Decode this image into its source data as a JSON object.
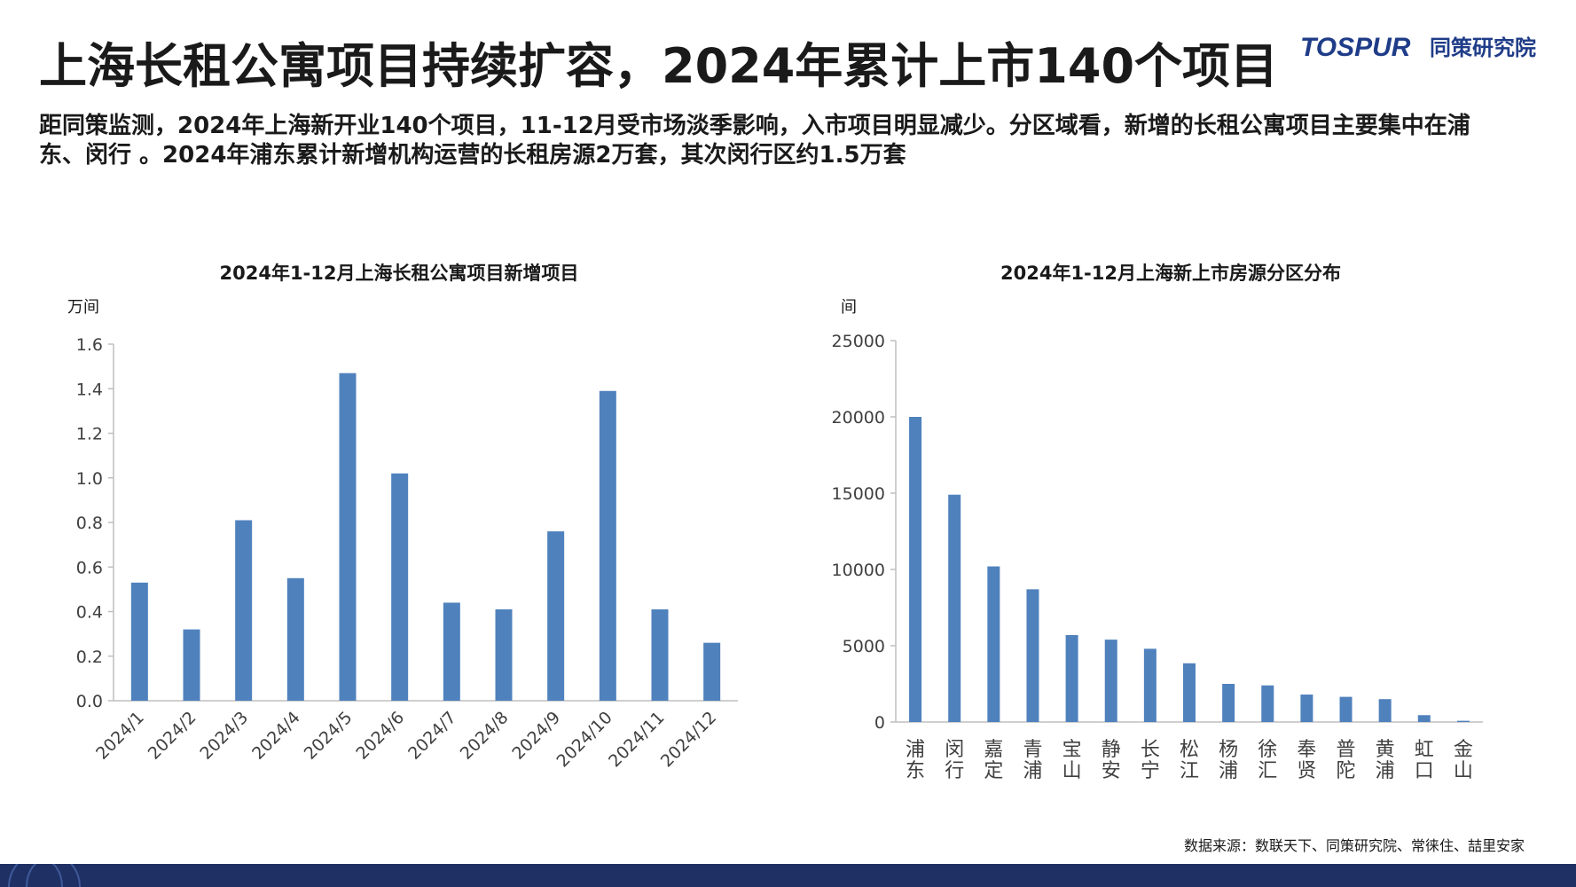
{
  "header": {
    "title": "上海长租公寓项目持续扩容，2024年累计上市140个项目",
    "logo_text": "TOSPUR",
    "logo_cn": "同策研究院",
    "summary": "距同策监测，2024年上海新开业140个项目，11-12月受市场淡季影响，入市项目明显减少。分区域看，新增的长租公寓项目主要集中在浦东、闵行 。2024年浦东累计新增机构运营的长租房源2万套，其次闵行区约1.5万套"
  },
  "colors": {
    "bar": "#4f81bd",
    "axis": "#bfbfbf",
    "footer": "#1f3064",
    "logo": "#1f3c88"
  },
  "source": "数据来源：数联天下、同策研究院、常徕住、喆里安家",
  "chart_data": [
    {
      "type": "bar",
      "title": "2024年1-12月上海长租公寓项目新增项目",
      "ylabel": "万间",
      "ylim": [
        0,
        1.6
      ],
      "yticks": [
        "0.0",
        "0.2",
        "0.4",
        "0.6",
        "0.8",
        "1.0",
        "1.2",
        "1.4",
        "1.6"
      ],
      "categories": [
        "2024/1",
        "2024/2",
        "2024/3",
        "2024/4",
        "2024/5",
        "2024/6",
        "2024/7",
        "2024/8",
        "2024/9",
        "2024/10",
        "2024/11",
        "2024/12"
      ],
      "values": [
        0.53,
        0.32,
        0.81,
        0.55,
        1.47,
        1.02,
        0.44,
        0.41,
        0.76,
        1.39,
        0.41,
        0.26
      ],
      "grid": false
    },
    {
      "type": "bar",
      "title": "2024年1-12月上海新上市房源分区分布",
      "ylabel": "间",
      "ylim": [
        0,
        25000
      ],
      "yticks": [
        "0",
        "5000",
        "10000",
        "15000",
        "20000",
        "25000"
      ],
      "categories": [
        "浦东",
        "闵行",
        "嘉定",
        "青浦",
        "宝山",
        "静安",
        "长宁",
        "松江",
        "杨浦",
        "徐汇",
        "奉贤",
        "普陀",
        "黄浦",
        "虹口",
        "金山"
      ],
      "values": [
        20000,
        14900,
        10200,
        8700,
        5700,
        5400,
        4800,
        3850,
        2500,
        2400,
        1800,
        1650,
        1500,
        450,
        80
      ],
      "grid": false
    }
  ]
}
